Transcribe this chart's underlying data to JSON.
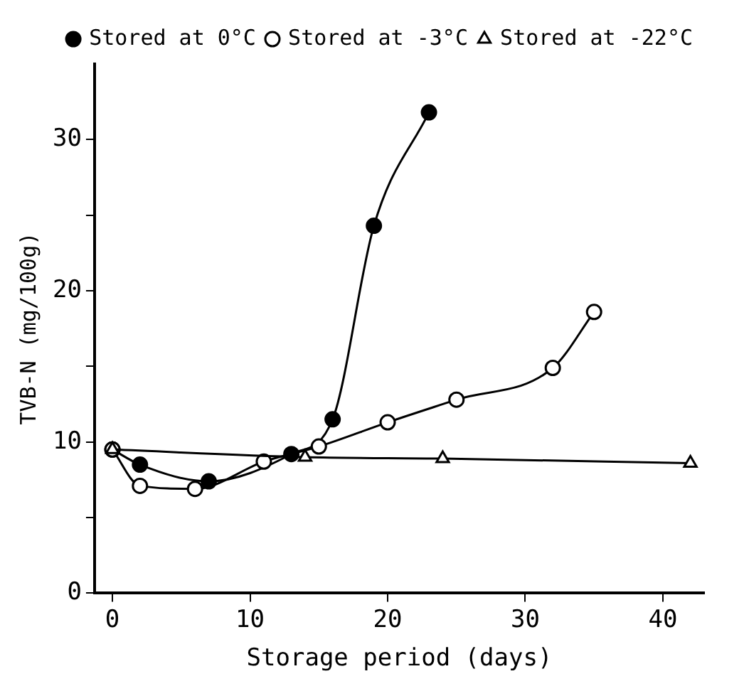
{
  "chart_data": {
    "type": "line",
    "xlabel": "Storage period (days)",
    "ylabel": "TVB-N (mg/100g)",
    "xlim": [
      -1.3,
      43
    ],
    "ylim": [
      0,
      35
    ],
    "xticks": [
      0,
      10,
      20,
      30,
      40
    ],
    "yticks": [
      0,
      {
        "value": 5,
        "label": null
      },
      10,
      {
        "value": 15,
        "label": null
      },
      20,
      {
        "value": 25,
        "label": null
      },
      30
    ],
    "grid": false,
    "legend": "top right",
    "line_style": "solid",
    "series": [
      {
        "name": "Stored at 0°C",
        "color": "#000000",
        "marker": "circle",
        "x": [
          0,
          2,
          7,
          13,
          16,
          19,
          23
        ],
        "values": [
          9.5,
          8.5,
          7.4,
          9.2,
          11.5,
          24.3,
          31.8
        ]
      },
      {
        "name": "Stored at -3°C",
        "color": "#000000",
        "marker": "circle",
        "x": [
          0,
          2,
          6,
          11,
          15,
          20,
          25,
          32,
          35
        ],
        "values": [
          9.5,
          7.1,
          6.9,
          8.7,
          9.7,
          11.3,
          12.8,
          14.9,
          18.6
        ]
      },
      {
        "name": "Stored at -22°C",
        "color": "#000000",
        "marker": "triangle",
        "x": [
          0,
          14,
          24,
          42
        ],
        "values": [
          9.5,
          9.0,
          8.9,
          8.6
        ]
      }
    ]
  }
}
